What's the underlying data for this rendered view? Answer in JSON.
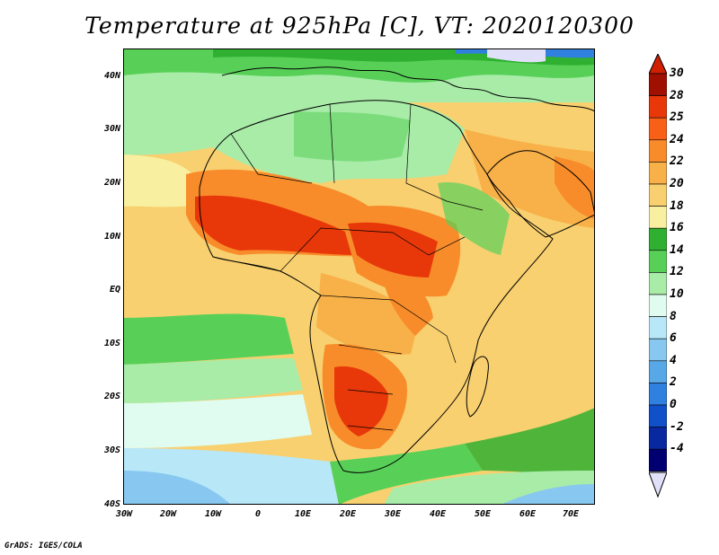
{
  "title": "Temperature at 925hPa [C], VT: 2020120300",
  "credit": "GrADS: IGES/COLA",
  "map": {
    "region": "Africa",
    "lat_labels": [
      "40N",
      "30N",
      "20N",
      "10N",
      "EQ",
      "10S",
      "20S",
      "30S",
      "40S"
    ],
    "lon_labels": [
      "30W",
      "20W",
      "10W",
      "0",
      "10E",
      "20E",
      "30E",
      "40E",
      "50E",
      "60E",
      "70E"
    ]
  },
  "colorbar": {
    "labels": [
      "30",
      "28",
      "25",
      "24",
      "22",
      "20",
      "18",
      "16",
      "14",
      "12",
      "10",
      "8",
      "6",
      "4",
      "2",
      "0",
      "-2",
      "-4"
    ],
    "colors": [
      "#a01000",
      "#e8380a",
      "#f86018",
      "#f88c2a",
      "#f8b048",
      "#f8d070",
      "#f8f0a0",
      "#30b030",
      "#58d058",
      "#a8eca8",
      "#e0fcf0",
      "#b8e8f8",
      "#88c8f0",
      "#58a8e8",
      "#3080e0",
      "#1050c8",
      "#0828a0",
      "#000070"
    ],
    "top_arrow_color": "#d02000",
    "bottom_arrow_color": "#e0e0f8"
  }
}
